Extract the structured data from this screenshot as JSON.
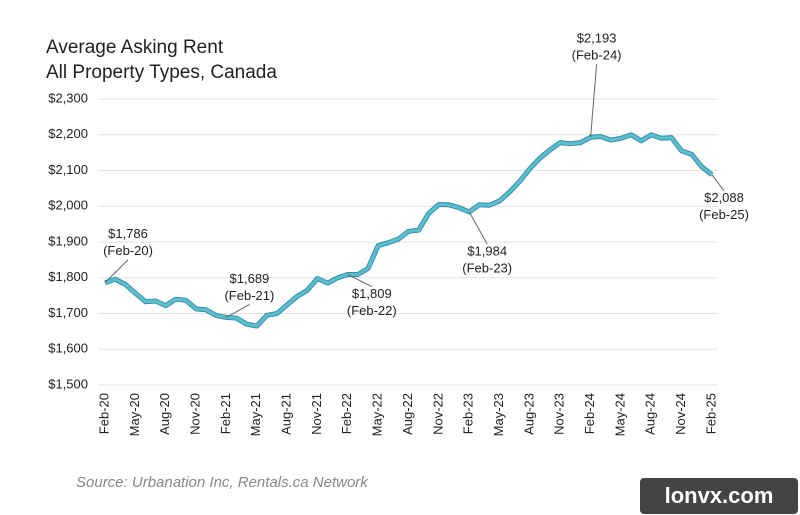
{
  "chart_data": {
    "type": "line",
    "title": "Average Asking Rent",
    "subtitle": "All Property Types, Canada",
    "source": "Source: Urbanation Inc, Rentals.ca Network",
    "watermark": "lonvx.com",
    "categories": [
      "Feb-20",
      null,
      null,
      "May-20",
      null,
      null,
      "Aug-20",
      null,
      null,
      "Nov-20",
      null,
      null,
      "Feb-21",
      null,
      null,
      "May-21",
      null,
      null,
      "Aug-21",
      null,
      null,
      "Nov-21",
      null,
      null,
      "Feb-22",
      null,
      null,
      "May-22",
      null,
      null,
      "Aug-22",
      null,
      null,
      "Nov-22",
      null,
      null,
      "Feb-23",
      null,
      null,
      "May-23",
      null,
      null,
      "Aug-23",
      null,
      null,
      "Nov-23",
      null,
      null,
      "Feb-24",
      null,
      null,
      "May-24",
      null,
      null,
      "Aug-24",
      null,
      null,
      "Nov-24",
      null,
      null,
      "Feb-25"
    ],
    "values": [
      1786,
      1796,
      1782,
      1757,
      1733,
      1735,
      1722,
      1740,
      1737,
      1713,
      1710,
      1694,
      1689,
      1687,
      1670,
      1665,
      1695,
      1700,
      1724,
      1748,
      1765,
      1798,
      1785,
      1800,
      1809,
      1809,
      1826,
      1890,
      1898,
      1908,
      1930,
      1933,
      1980,
      2005,
      2004,
      1996,
      1984,
      2004,
      2003,
      2015,
      2040,
      2070,
      2105,
      2135,
      2158,
      2178,
      2175,
      2178,
      2193,
      2195,
      2185,
      2190,
      2200,
      2183,
      2200,
      2190,
      2192,
      2155,
      2145,
      2110,
      2088
    ],
    "value_labels": [
      "$1,786",
      null,
      null,
      null,
      null,
      null,
      null,
      null,
      null,
      null,
      null,
      null,
      "$1,689",
      null,
      null,
      null,
      null,
      null,
      null,
      null,
      null,
      null,
      null,
      null,
      "$1,809",
      null,
      null,
      null,
      null,
      null,
      null,
      null,
      null,
      null,
      null,
      null,
      "$1,984",
      null,
      null,
      null,
      null,
      null,
      null,
      null,
      null,
      null,
      null,
      null,
      "$2,193",
      null,
      null,
      null,
      null,
      null,
      null,
      null,
      null,
      null,
      null,
      null,
      "$2,088"
    ],
    "value_label_dates": [
      "(Feb-20)",
      null,
      null,
      null,
      null,
      null,
      null,
      null,
      null,
      null,
      null,
      null,
      "(Feb-21)",
      null,
      null,
      null,
      null,
      null,
      null,
      null,
      null,
      null,
      null,
      null,
      "(Feb-22)",
      null,
      null,
      null,
      null,
      null,
      null,
      null,
      null,
      null,
      null,
      null,
      "(Feb-23)",
      null,
      null,
      null,
      null,
      null,
      null,
      null,
      null,
      null,
      null,
      null,
      "(Feb-24)",
      null,
      null,
      null,
      null,
      null,
      null,
      null,
      null,
      null,
      null,
      null,
      "(Feb-25)"
    ],
    "color": "#5bbfd3",
    "ylim": [
      1500,
      2300
    ],
    "yticks": [
      {
        "value": 1500,
        "label": "$1,500"
      },
      {
        "value": 1600,
        "label": "$1,600"
      },
      {
        "value": 1700,
        "label": "$1,700"
      },
      {
        "value": 1800,
        "label": "$1,800"
      },
      {
        "value": 1900,
        "label": "$1,900"
      },
      {
        "value": 2000,
        "label": "$2,000"
      },
      {
        "value": 2100,
        "label": "$2,100"
      },
      {
        "value": 2200,
        "label": "$2,200"
      },
      {
        "value": 2300,
        "label": "$2,300"
      }
    ],
    "grid": true
  }
}
